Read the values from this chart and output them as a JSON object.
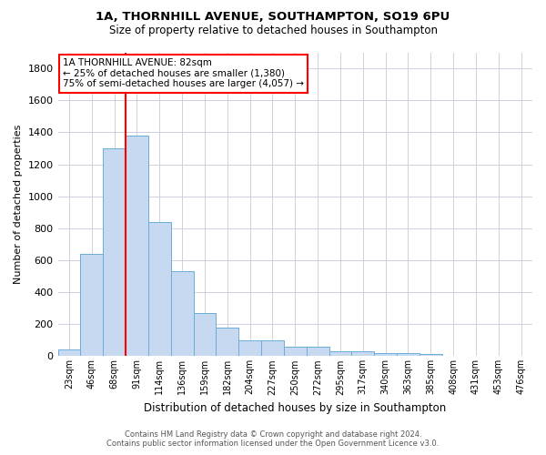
{
  "title1": "1A, THORNHILL AVENUE, SOUTHAMPTON, SO19 6PU",
  "title2": "Size of property relative to detached houses in Southampton",
  "xlabel": "Distribution of detached houses by size in Southampton",
  "ylabel": "Number of detached properties",
  "categories": [
    "23sqm",
    "46sqm",
    "68sqm",
    "91sqm",
    "114sqm",
    "136sqm",
    "159sqm",
    "182sqm",
    "204sqm",
    "227sqm",
    "250sqm",
    "272sqm",
    "295sqm",
    "317sqm",
    "340sqm",
    "363sqm",
    "385sqm",
    "408sqm",
    "431sqm",
    "453sqm",
    "476sqm"
  ],
  "values": [
    40,
    640,
    1300,
    1380,
    840,
    530,
    270,
    180,
    100,
    100,
    60,
    60,
    30,
    30,
    20,
    20,
    15,
    5,
    5,
    5,
    5
  ],
  "bar_color": "#c6d9f0",
  "bar_edge_color": "#6baed6",
  "grid_color": "#d0d0e0",
  "annotation_line1": "1A THORNHILL AVENUE: 82sqm",
  "annotation_line2": "← 25% of detached houses are smaller (1,380)",
  "annotation_line3": "75% of semi-detached houses are larger (4,057) →",
  "footer1": "Contains HM Land Registry data © Crown copyright and database right 2024.",
  "footer2": "Contains public sector information licensed under the Open Government Licence v3.0.",
  "ylim": [
    0,
    1900
  ],
  "yticks": [
    0,
    200,
    400,
    600,
    800,
    1000,
    1200,
    1400,
    1600,
    1800
  ],
  "red_line_x": 2.5,
  "fig_width": 6.0,
  "fig_height": 5.0
}
